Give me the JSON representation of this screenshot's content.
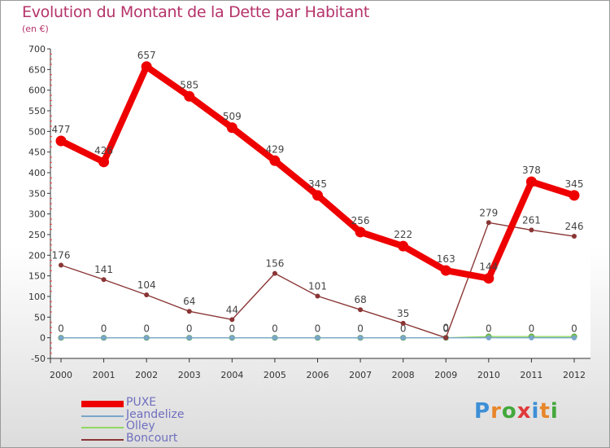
{
  "header": {
    "title": "Evolution du Montant de la Dette par Habitant",
    "subtitle": "(en €)"
  },
  "brand": {
    "letters": [
      "P",
      "r",
      "o",
      "x",
      "i",
      "t",
      "i"
    ],
    "colors": [
      "#3d8fd6",
      "#e8862a",
      "#44a83c",
      "#e03a3a",
      "#3d8fd6",
      "#e8862a",
      "#44a83c"
    ]
  },
  "chart_data": {
    "type": "line",
    "title": "Evolution du Montant de la Dette par Habitant",
    "ylabel": "(en €)",
    "xlabel": "",
    "ylim": [
      -50,
      700
    ],
    "yticks": [
      -50,
      0,
      50,
      100,
      150,
      200,
      250,
      300,
      350,
      400,
      450,
      500,
      550,
      600,
      650,
      700
    ],
    "categories": [
      "2000",
      "2001",
      "2002",
      "2003",
      "2004",
      "2005",
      "2006",
      "2007",
      "2008",
      "2009",
      "2010",
      "2011",
      "2012"
    ],
    "series": [
      {
        "name": "Olley",
        "color": "#90d860",
        "values": [
          0,
          0,
          0,
          0,
          0,
          0,
          0,
          0,
          0,
          0,
          3,
          3,
          3
        ],
        "labels": false
      },
      {
        "name": "Jeandelize",
        "color": "#7aa6c8",
        "values": [
          0,
          0,
          0,
          0,
          0,
          0,
          0,
          0,
          0,
          0,
          0,
          0,
          0
        ],
        "labels": true
      },
      {
        "name": "Boncourt",
        "color": "#8a3535",
        "values": [
          176,
          141,
          104,
          64,
          44,
          156,
          101,
          68,
          35,
          0,
          279,
          261,
          246
        ],
        "labels": true
      },
      {
        "name": "PUXE",
        "color": "#ee0000",
        "values": [
          477,
          426,
          657,
          585,
          509,
          429,
          345,
          256,
          222,
          163,
          144,
          378,
          345
        ],
        "labels": true
      }
    ],
    "legend_order": [
      "PUXE",
      "Jeandelize",
      "Olley",
      "Boncourt"
    ],
    "legend": "bottom-left",
    "grid": false
  }
}
